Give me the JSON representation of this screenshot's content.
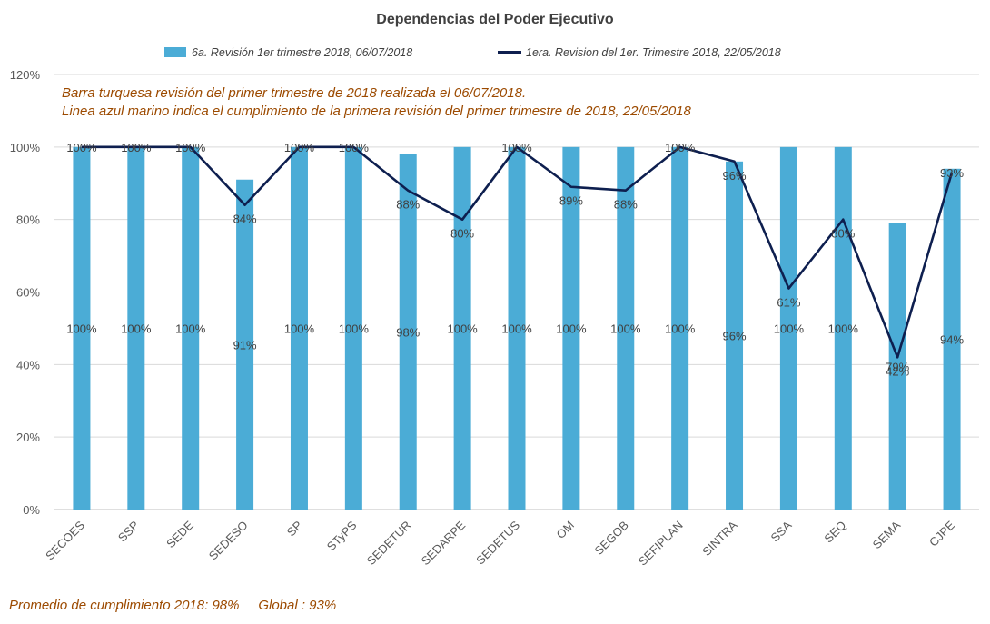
{
  "chart_data": {
    "type": "bar",
    "title": "Dependencias del Poder Ejecutivo",
    "categories": [
      "SECOES",
      "SSP",
      "SEDE",
      "SEDESO",
      "SP",
      "STyPS",
      "SEDETUR",
      "SEDARPE",
      "SEDETUS",
      "OM",
      "SEGOB",
      "SEFIPLAN",
      "SINTRA",
      "SSA",
      "SEQ",
      "SEMA",
      "CJPE"
    ],
    "series": [
      {
        "name": "6a. Revisión 1er trimestre 2018, 06/07/2018",
        "kind": "bar",
        "color": "#4BACD6",
        "values": [
          100,
          100,
          100,
          91,
          100,
          100,
          98,
          100,
          100,
          100,
          100,
          100,
          96,
          100,
          100,
          79,
          94
        ],
        "labels": [
          "100%",
          "100%",
          "100%",
          "91%",
          "100%",
          "100%",
          "98%",
          "100%",
          "100%",
          "100%",
          "100%",
          "100%",
          "96%",
          "100%",
          "100%",
          "79%",
          "94%"
        ]
      },
      {
        "name": "1era. Revision del 1er. Trimestre 2018, 22/05/2018",
        "kind": "line",
        "color": "#0E1F4F",
        "values": [
          100,
          100,
          100,
          84,
          100,
          100,
          88,
          80,
          100,
          89,
          88,
          100,
          96,
          61,
          80,
          42,
          93
        ],
        "labels": [
          "100%",
          "100%",
          "100%",
          "84%",
          "100%",
          "100%",
          "88%",
          "80%",
          "100%",
          "89%",
          "88%",
          "100%",
          "96%",
          "61%",
          "80%",
          "42%",
          "93%"
        ]
      }
    ],
    "ylim": [
      0,
      120
    ],
    "yticks": [
      "0%",
      "20%",
      "40%",
      "60%",
      "80%",
      "100%",
      "120%"
    ],
    "ytick_values": [
      0,
      20,
      40,
      60,
      80,
      100,
      120
    ],
    "grid": true,
    "legend_placement": "top",
    "annotations": [
      "Barra turquesa revisión del primer trimestre de 2018 realizada el 06/07/2018.",
      "Linea azul marino indica el cumplimiento de la primera revisión del primer trimestre de 2018,  22/05/2018"
    ],
    "footer": "Promedio de cumplimiento 2018: 98%     Global : 93%",
    "annotation_color": "#9C4A00"
  }
}
